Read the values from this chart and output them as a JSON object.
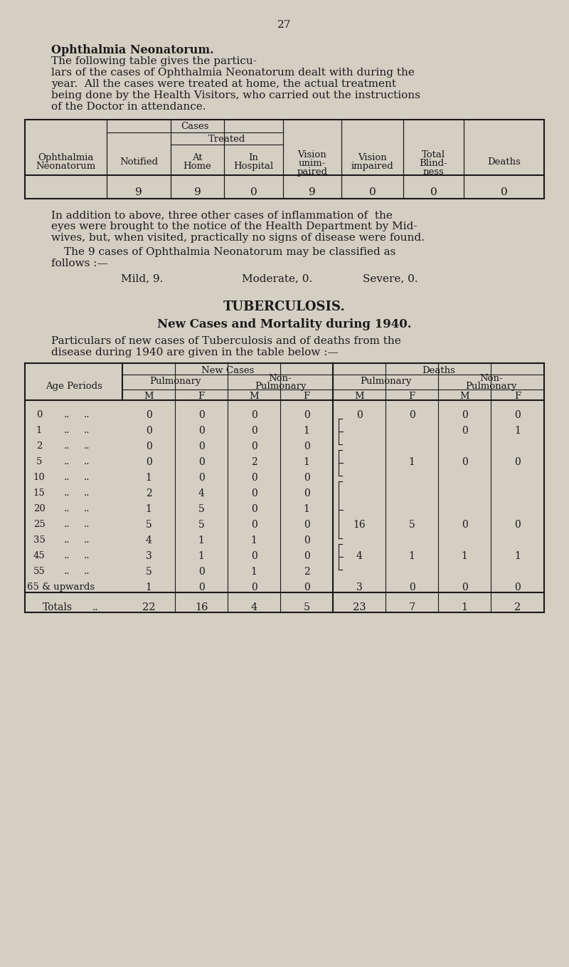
{
  "bg_color": "#d4cfc3",
  "text_color": "#1a1a1a",
  "page_number": "27",
  "opth_data_row": [
    "9",
    "9",
    "0",
    "9",
    "0",
    "0",
    "0"
  ],
  "tb_age_periods": [
    "0",
    "1",
    "2",
    "5",
    "10",
    "15",
    "20",
    "25",
    "35",
    "45",
    "55",
    "65 & upwards"
  ],
  "new_cases_pulm_M": [
    0,
    0,
    0,
    0,
    1,
    2,
    1,
    5,
    4,
    3,
    5,
    1
  ],
  "new_cases_pulm_F": [
    0,
    0,
    0,
    0,
    0,
    4,
    5,
    5,
    1,
    1,
    0,
    0
  ],
  "new_cases_nonpulm_M": [
    0,
    0,
    0,
    2,
    0,
    0,
    0,
    0,
    1,
    0,
    1,
    0
  ],
  "new_cases_nonpulm_F": [
    0,
    1,
    0,
    1,
    0,
    0,
    1,
    0,
    0,
    0,
    2,
    0
  ],
  "totals": [
    "22",
    "16",
    "4",
    "5",
    "23",
    "7",
    "1",
    "2"
  ],
  "death_shown": [
    [
      0,
      0,
      0,
      0
    ],
    [
      null,
      null,
      0,
      1
    ],
    [
      null,
      null,
      null,
      null
    ],
    [
      null,
      1,
      0,
      0
    ],
    [
      null,
      null,
      null,
      null
    ],
    [
      null,
      null,
      null,
      null
    ],
    [
      null,
      null,
      null,
      null
    ],
    [
      16,
      5,
      0,
      0
    ],
    [
      null,
      null,
      null,
      null
    ],
    [
      4,
      1,
      1,
      1
    ],
    [
      null,
      null,
      null,
      null
    ],
    [
      3,
      0,
      0,
      0
    ]
  ]
}
